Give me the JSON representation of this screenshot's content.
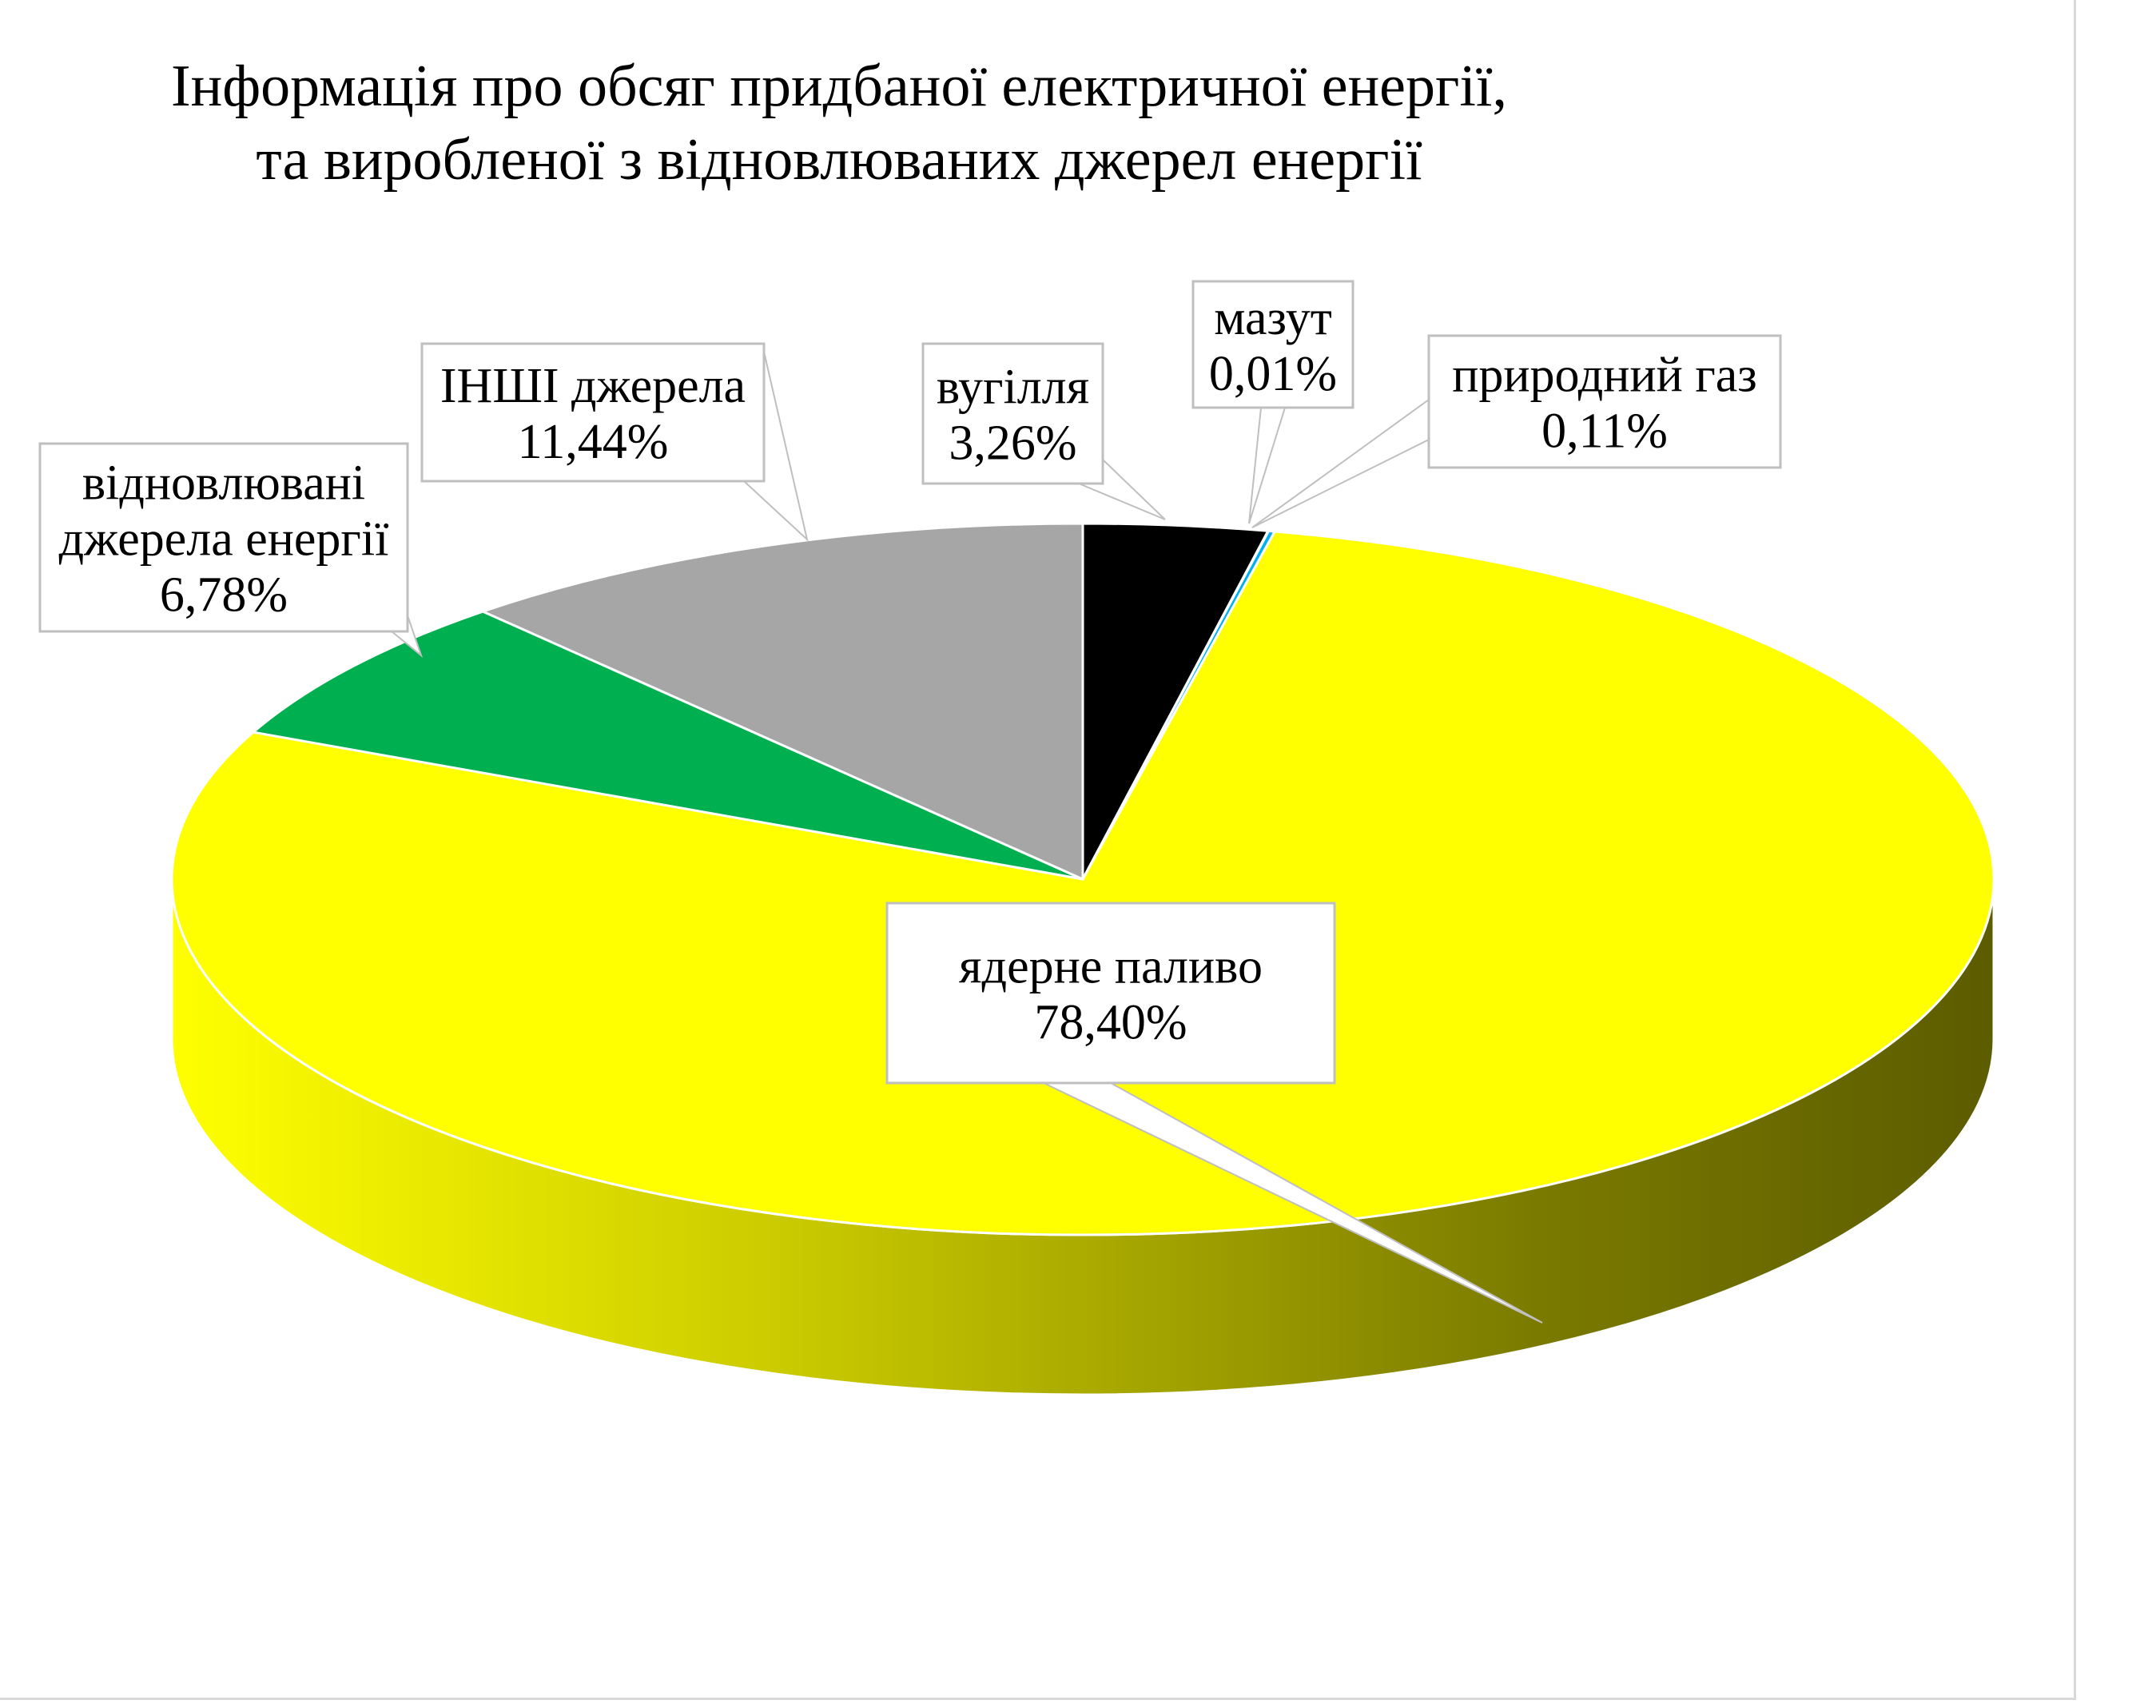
{
  "chart_data": {
    "type": "pie",
    "title": "Інформація про обсяг придбаної електричної енергії,\nта виробленої з відновлюваних джерел енергії",
    "slices": [
      {
        "label": "вугілля",
        "pct_text": "3,26%",
        "value": 3.26,
        "color": "#000000",
        "side_color": "#000000"
      },
      {
        "label": "мазут",
        "pct_text": "0,01%",
        "value": 0.01,
        "color": "#2f5597",
        "side_color": "#1f3864"
      },
      {
        "label": "природний  газ",
        "pct_text": "0,11%",
        "value": 0.11,
        "color": "#00b0f0",
        "side_color": "#0070a0"
      },
      {
        "label": "ядерне паливо",
        "pct_text": "78,40%",
        "value": 78.4,
        "color": "#ffff00",
        "side_color": "#d8d800"
      },
      {
        "label": "відновлювані\nджерела енергії",
        "pct_text": "6,78%",
        "value": 6.78,
        "color": "#00b050",
        "side_color": "#008a3e"
      },
      {
        "label": "ІНШІ джерела",
        "pct_text": "11,44%",
        "value": 11.44,
        "color": "#a6a6a6",
        "side_color": "#808080"
      }
    ],
    "legend": "none",
    "view": "3d"
  }
}
